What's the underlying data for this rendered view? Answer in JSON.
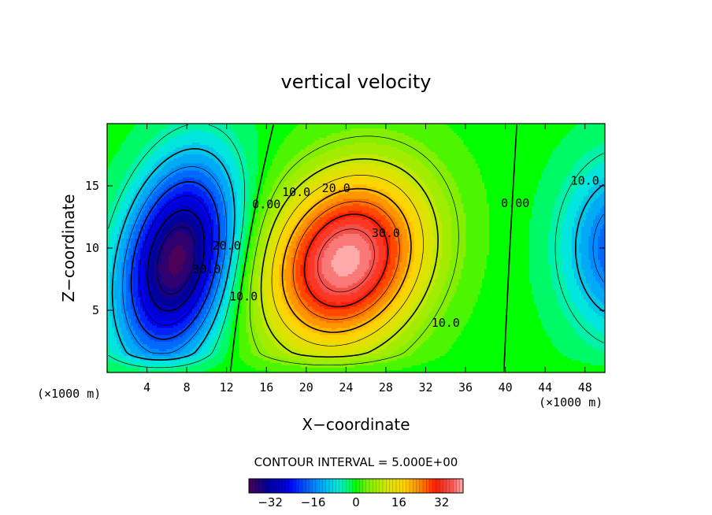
{
  "chart_data": {
    "type": "heatmap",
    "title": "vertical velocity",
    "xlabel": "X−coordinate",
    "ylabel": "Z−coordinate",
    "x_unit_left": "(×1000 m)",
    "x_unit_right": "(×1000 m)",
    "xlim": [
      0,
      50
    ],
    "ylim": [
      0,
      20
    ],
    "x_ticks": [
      4,
      8,
      12,
      16,
      20,
      24,
      28,
      32,
      36,
      40,
      44,
      48
    ],
    "y_ticks": [
      5,
      10,
      15
    ],
    "contour_interval_text": "CONTOUR INTERVAL = 5.000E+00",
    "contour_interval": 5,
    "colorbar": {
      "range": [
        -40,
        40
      ],
      "ticks": [
        -32,
        -16,
        0,
        16,
        32
      ],
      "tick_labels": [
        "−32",
        "−16",
        "0",
        "16",
        "32"
      ]
    },
    "features": [
      {
        "kind": "updraft",
        "x": 24,
        "z": 9,
        "max": 40
      },
      {
        "kind": "downdraft",
        "x": 7,
        "z": 9,
        "min": -40
      },
      {
        "kind": "downdraft",
        "x": 52,
        "z": 10,
        "min": -20
      }
    ],
    "contour_labels": [
      {
        "text": "0.00",
        "x": 16,
        "z": 13.5
      },
      {
        "text": "10.0",
        "x": 19,
        "z": 14.5
      },
      {
        "text": "20.0",
        "x": 23,
        "z": 14.8
      },
      {
        "text": "30.0",
        "x": 28,
        "z": 11.2
      },
      {
        "text": "10.0",
        "x": 34,
        "z": 4
      },
      {
        "text": "0.00",
        "x": 41,
        "z": 13.6
      },
      {
        "text": "10.0",
        "x": 48,
        "z": 15.4
      },
      {
        "text": "20.0",
        "x": 12,
        "z": 10.2
      },
      {
        "text": "30.0",
        "x": 10,
        "z": 8.3
      },
      {
        "text": "10.0",
        "x": 13.7,
        "z": 6.1
      }
    ]
  }
}
